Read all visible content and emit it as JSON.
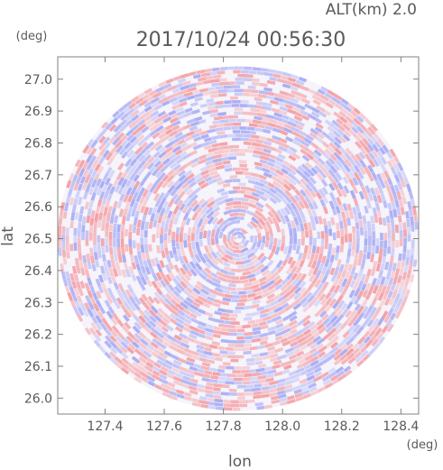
{
  "chart_data": {
    "type": "heatmap",
    "altitude_label": "ALT(km) 2.0",
    "timestamp": "2017/10/24 00:56:30",
    "xlabel": "lon",
    "ylabel": "lat",
    "x_unit": "(deg)",
    "y_unit": "(deg)",
    "xlim": [
      127.24,
      128.46
    ],
    "ylim": [
      25.95,
      27.07
    ],
    "x_ticks": [
      127.4,
      127.6,
      127.8,
      128.0,
      128.2,
      128.4
    ],
    "x_tick_labels": [
      "127.4",
      "127.6",
      "127.8",
      "128.0",
      "128.2",
      "128.4"
    ],
    "y_ticks": [
      26.0,
      26.1,
      26.2,
      26.3,
      26.4,
      26.5,
      26.6,
      26.7,
      26.8,
      26.9,
      27.0
    ],
    "y_tick_labels": [
      "26.0",
      "26.1",
      "26.2",
      "26.3",
      "26.4",
      "26.5",
      "26.6",
      "26.7",
      "26.8",
      "26.9",
      "27.0"
    ],
    "radar_center": {
      "lon": 127.85,
      "lat": 26.5
    },
    "radar_extent_deg": {
      "lon": 0.61,
      "lat": 0.54
    },
    "positive_color": "#f4a0a4",
    "negative_color": "#a8acf4",
    "grid": false
  }
}
